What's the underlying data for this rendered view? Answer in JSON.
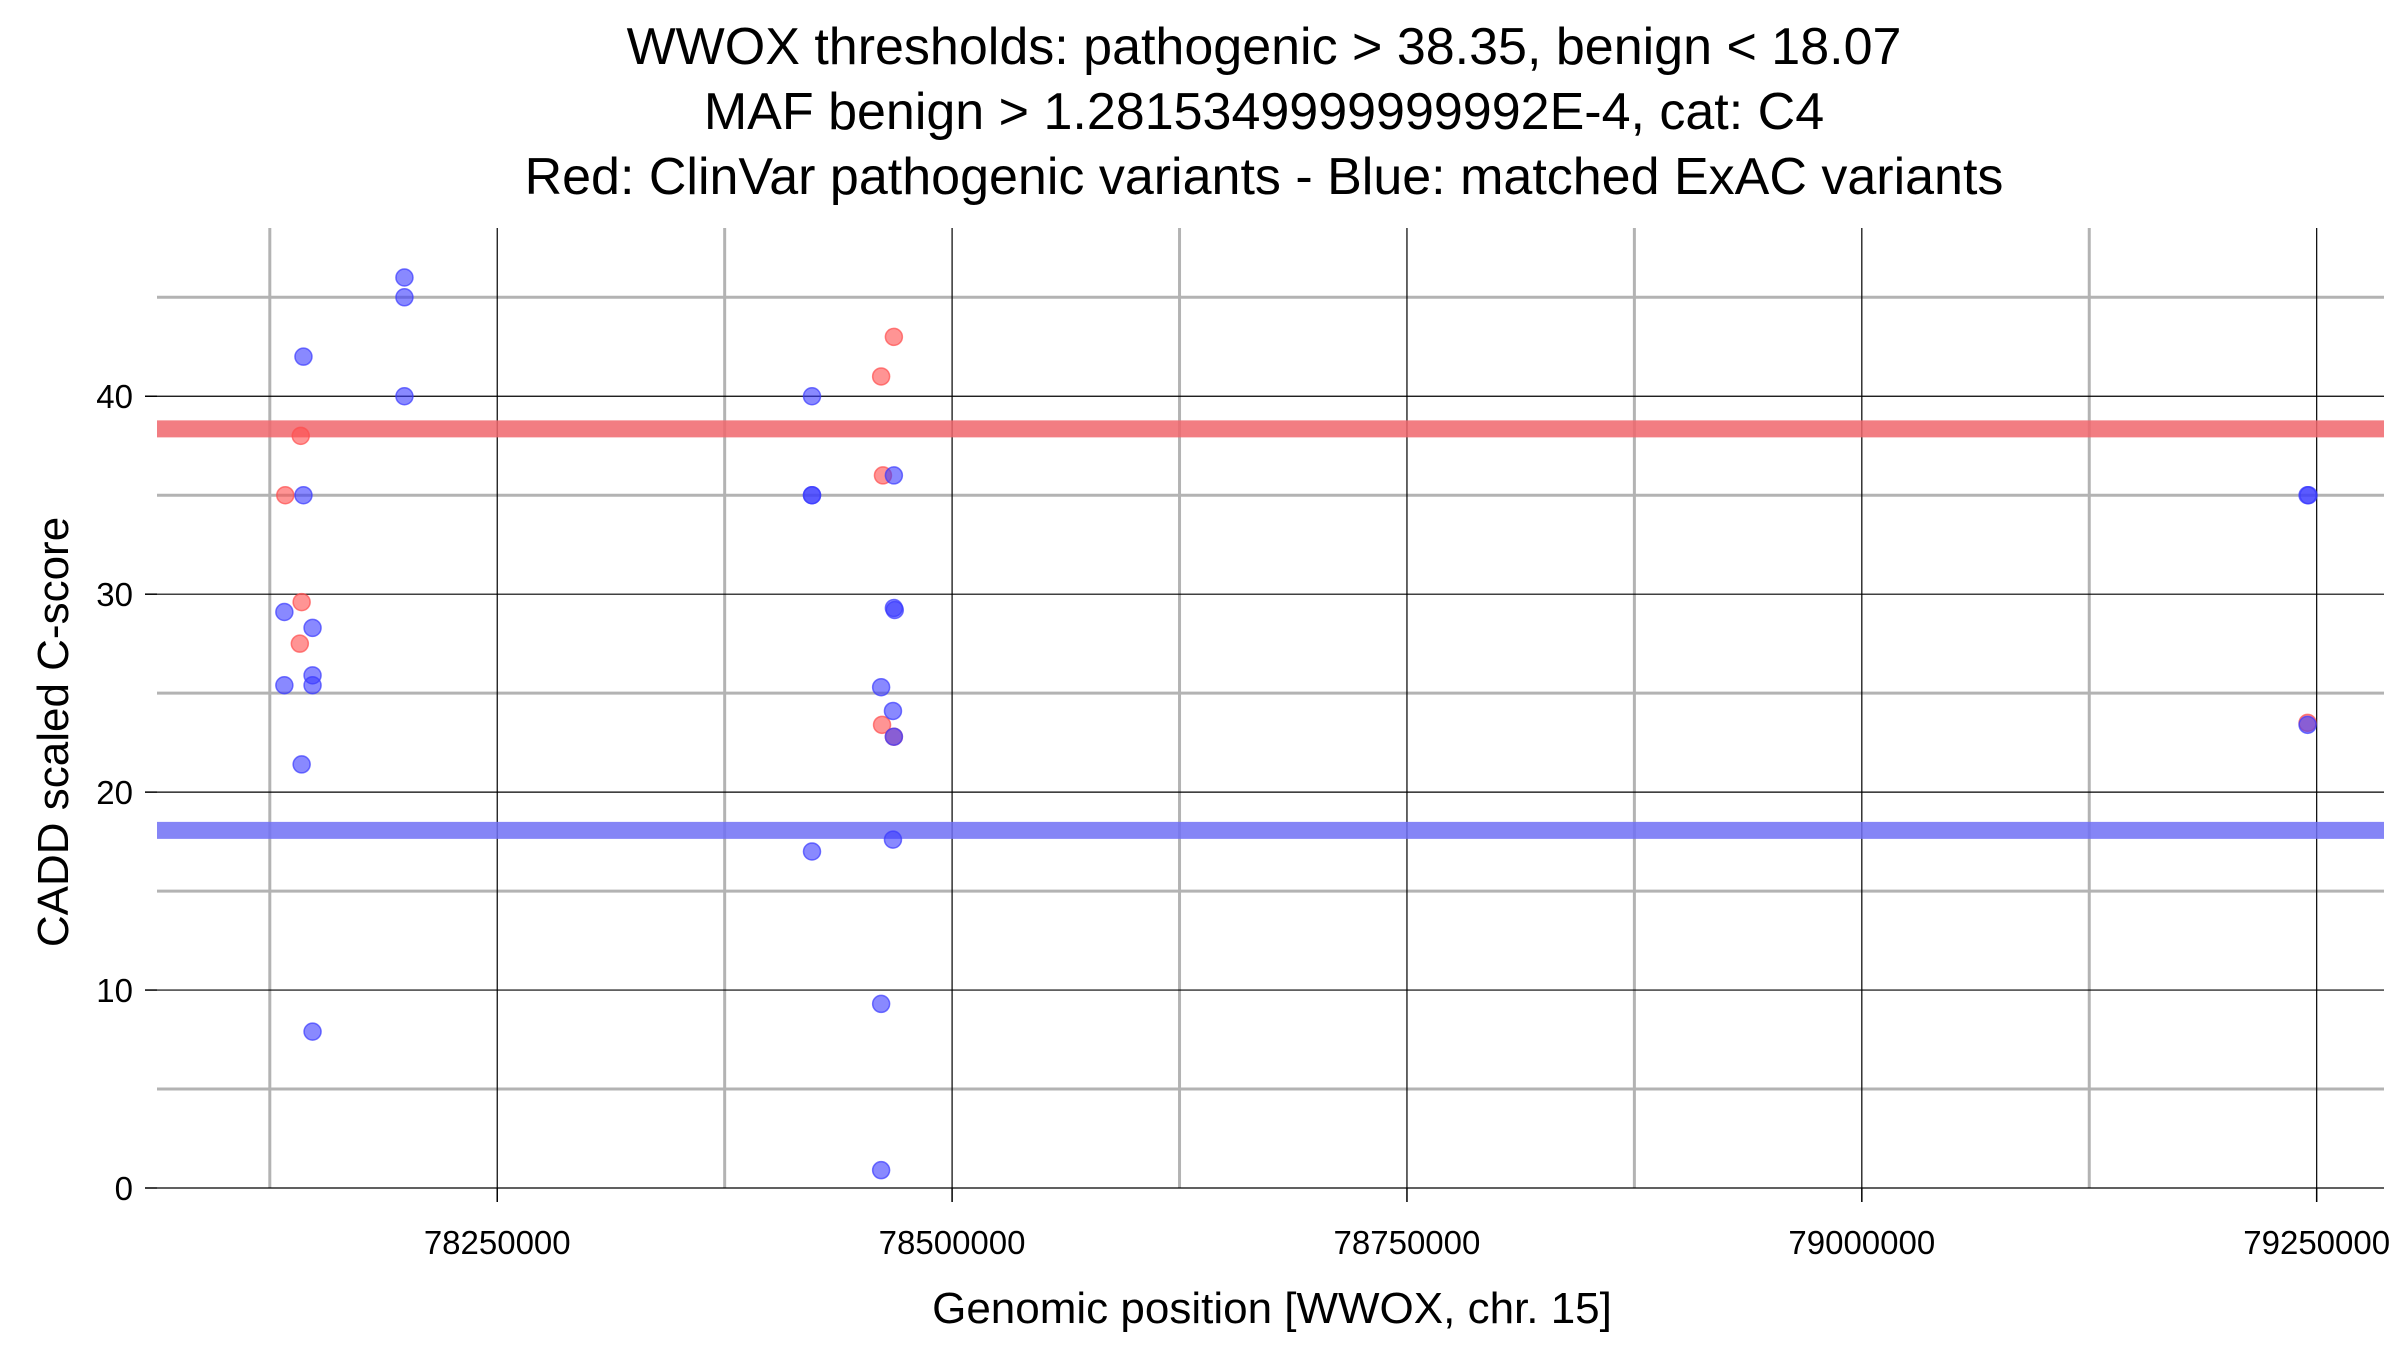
{
  "chart_data": {
    "type": "scatter",
    "title": [
      "WWOX thresholds: pathogenic > 38.35, benign < 18.07",
      "MAF benign > 1.2815349999999992E-4, cat: C4",
      "Red: ClinVar pathogenic variants - Blue: matched ExAC variants"
    ],
    "xlabel": "Genomic position [WWOX, chr. 15]",
    "ylabel": "CADD scaled C-score",
    "xlim": [
      78063000,
      79287000
    ],
    "ylim": [
      0,
      48.5
    ],
    "x_major_ticks": [
      78250000,
      78500000,
      78750000,
      79000000,
      79250000
    ],
    "x_tick_labels": [
      "78250000",
      "78500000",
      "78750000",
      "79000000",
      "79250000"
    ],
    "x_minor_ticks": [
      78125000,
      78375000,
      78625000,
      78875000,
      79125000
    ],
    "y_major_ticks": [
      0,
      10,
      20,
      30,
      40
    ],
    "y_tick_labels": [
      "0",
      "10",
      "20",
      "30",
      "40"
    ],
    "y_minor_ticks": [
      5,
      15,
      25,
      35,
      45
    ],
    "grid": true,
    "thresholds": [
      {
        "name": "pathogenic",
        "value": 38.35,
        "color": "#f0666c"
      },
      {
        "name": "benign",
        "value": 18.07,
        "color": "#7070f5"
      }
    ],
    "series": [
      {
        "name": "ClinVar pathogenic variants",
        "color": "#ff4d4d",
        "points": [
          [
            78133500,
            35.0
          ],
          [
            78142000,
            38.0
          ],
          [
            78142500,
            29.6
          ],
          [
            78141500,
            27.5
          ],
          [
            78461000,
            41.0
          ],
          [
            78462000,
            36.0
          ],
          [
            78468000,
            43.0
          ],
          [
            78461500,
            23.4
          ],
          [
            78468000,
            22.8
          ],
          [
            79245000,
            23.5
          ]
        ]
      },
      {
        "name": "matched ExAC variants",
        "color": "#3b3bff",
        "points": [
          [
            78199000,
            46.0
          ],
          [
            78199000,
            45.0
          ],
          [
            78199000,
            40.0
          ],
          [
            78143500,
            42.0
          ],
          [
            78143500,
            35.0
          ],
          [
            78133000,
            29.1
          ],
          [
            78148500,
            28.3
          ],
          [
            78133000,
            25.4
          ],
          [
            78148500,
            25.9
          ],
          [
            78148500,
            25.4
          ],
          [
            78142500,
            21.4
          ],
          [
            78148500,
            7.9
          ],
          [
            78423000,
            40.0
          ],
          [
            78423000,
            35.0
          ],
          [
            78423000,
            35.0
          ],
          [
            78423000,
            17.0
          ],
          [
            78468000,
            36.0
          ],
          [
            78468000,
            29.3
          ],
          [
            78468500,
            29.2
          ],
          [
            78461000,
            25.3
          ],
          [
            78467500,
            24.1
          ],
          [
            78468000,
            22.8
          ],
          [
            78467500,
            17.6
          ],
          [
            78461000,
            9.3
          ],
          [
            78461000,
            0.9
          ],
          [
            79245000,
            35.0
          ],
          [
            79245500,
            35.0
          ],
          [
            79245000,
            23.4
          ]
        ]
      }
    ]
  }
}
